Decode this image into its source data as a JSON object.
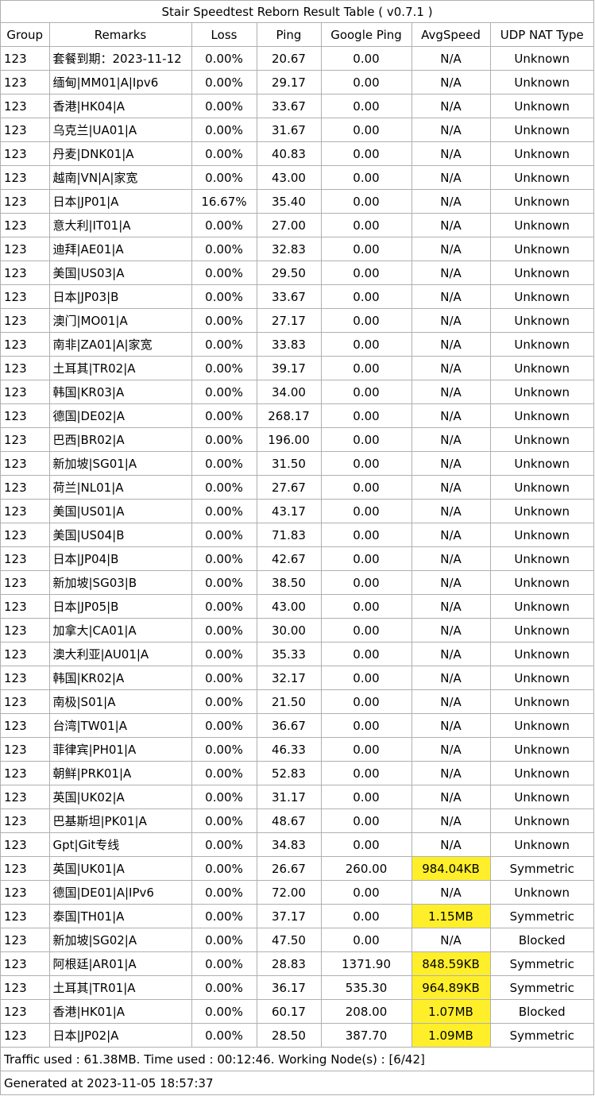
{
  "title": "Stair Speedtest Reborn Result Table ( v0.7.1 )",
  "columns": [
    "Group",
    "Remarks",
    "Loss",
    "Ping",
    "Google Ping",
    "AvgSpeed",
    "UDP NAT Type"
  ],
  "highlight_color": "#ffef2a",
  "rows": [
    [
      "123",
      "套餐到期：2023-11-12",
      "0.00%",
      "20.67",
      "0.00",
      "N/A",
      "Unknown"
    ],
    [
      "123",
      "缅甸|MM01|A|Ipv6",
      "0.00%",
      "29.17",
      "0.00",
      "N/A",
      "Unknown"
    ],
    [
      "123",
      "香港|HK04|A",
      "0.00%",
      "33.67",
      "0.00",
      "N/A",
      "Unknown"
    ],
    [
      "123",
      "乌克兰|UA01|A",
      "0.00%",
      "31.67",
      "0.00",
      "N/A",
      "Unknown"
    ],
    [
      "123",
      "丹麦|DNK01|A",
      "0.00%",
      "40.83",
      "0.00",
      "N/A",
      "Unknown"
    ],
    [
      "123",
      "越南|VN|A|家宽",
      "0.00%",
      "43.00",
      "0.00",
      "N/A",
      "Unknown"
    ],
    [
      "123",
      "日本|JP01|A",
      "16.67%",
      "35.40",
      "0.00",
      "N/A",
      "Unknown"
    ],
    [
      "123",
      "意大利|IT01|A",
      "0.00%",
      "27.00",
      "0.00",
      "N/A",
      "Unknown"
    ],
    [
      "123",
      "迪拜|AE01|A",
      "0.00%",
      "32.83",
      "0.00",
      "N/A",
      "Unknown"
    ],
    [
      "123",
      "美国|US03|A",
      "0.00%",
      "29.50",
      "0.00",
      "N/A",
      "Unknown"
    ],
    [
      "123",
      "日本|JP03|B",
      "0.00%",
      "33.67",
      "0.00",
      "N/A",
      "Unknown"
    ],
    [
      "123",
      "澳门|MO01|A",
      "0.00%",
      "27.17",
      "0.00",
      "N/A",
      "Unknown"
    ],
    [
      "123",
      "南非|ZA01|A|家宽",
      "0.00%",
      "33.83",
      "0.00",
      "N/A",
      "Unknown"
    ],
    [
      "123",
      "土耳其|TR02|A",
      "0.00%",
      "39.17",
      "0.00",
      "N/A",
      "Unknown"
    ],
    [
      "123",
      "韩国|KR03|A",
      "0.00%",
      "34.00",
      "0.00",
      "N/A",
      "Unknown"
    ],
    [
      "123",
      "德国|DE02|A",
      "0.00%",
      "268.17",
      "0.00",
      "N/A",
      "Unknown"
    ],
    [
      "123",
      "巴西|BR02|A",
      "0.00%",
      "196.00",
      "0.00",
      "N/A",
      "Unknown"
    ],
    [
      "123",
      "新加坡|SG01|A",
      "0.00%",
      "31.50",
      "0.00",
      "N/A",
      "Unknown"
    ],
    [
      "123",
      "荷兰|NL01|A",
      "0.00%",
      "27.67",
      "0.00",
      "N/A",
      "Unknown"
    ],
    [
      "123",
      "美国|US01|A",
      "0.00%",
      "43.17",
      "0.00",
      "N/A",
      "Unknown"
    ],
    [
      "123",
      "美国|US04|B",
      "0.00%",
      "71.83",
      "0.00",
      "N/A",
      "Unknown"
    ],
    [
      "123",
      "日本|JP04|B",
      "0.00%",
      "42.67",
      "0.00",
      "N/A",
      "Unknown"
    ],
    [
      "123",
      "新加坡|SG03|B",
      "0.00%",
      "38.50",
      "0.00",
      "N/A",
      "Unknown"
    ],
    [
      "123",
      "日本|JP05|B",
      "0.00%",
      "43.00",
      "0.00",
      "N/A",
      "Unknown"
    ],
    [
      "123",
      "加拿大|CA01|A",
      "0.00%",
      "30.00",
      "0.00",
      "N/A",
      "Unknown"
    ],
    [
      "123",
      "澳大利亚|AU01|A",
      "0.00%",
      "35.33",
      "0.00",
      "N/A",
      "Unknown"
    ],
    [
      "123",
      "韩国|KR02|A",
      "0.00%",
      "32.17",
      "0.00",
      "N/A",
      "Unknown"
    ],
    [
      "123",
      "南极|S01|A",
      "0.00%",
      "21.50",
      "0.00",
      "N/A",
      "Unknown"
    ],
    [
      "123",
      "台湾|TW01|A",
      "0.00%",
      "36.67",
      "0.00",
      "N/A",
      "Unknown"
    ],
    [
      "123",
      "菲律宾|PH01|A",
      "0.00%",
      "46.33",
      "0.00",
      "N/A",
      "Unknown"
    ],
    [
      "123",
      "朝鲜|PRK01|A",
      "0.00%",
      "52.83",
      "0.00",
      "N/A",
      "Unknown"
    ],
    [
      "123",
      "英国|UK02|A",
      "0.00%",
      "31.17",
      "0.00",
      "N/A",
      "Unknown"
    ],
    [
      "123",
      "巴基斯坦|PK01|A",
      "0.00%",
      "48.67",
      "0.00",
      "N/A",
      "Unknown"
    ],
    [
      "123",
      "Gpt|Git专线",
      "0.00%",
      "34.83",
      "0.00",
      "N/A",
      "Unknown"
    ],
    [
      "123",
      "英国|UK01|A",
      "0.00%",
      "26.67",
      "260.00",
      "984.04KB",
      "Symmetric"
    ],
    [
      "123",
      "德国|DE01|A|IPv6",
      "0.00%",
      "72.00",
      "0.00",
      "N/A",
      "Unknown"
    ],
    [
      "123",
      "泰国|TH01|A",
      "0.00%",
      "37.17",
      "0.00",
      "1.15MB",
      "Symmetric"
    ],
    [
      "123",
      "新加坡|SG02|A",
      "0.00%",
      "47.50",
      "0.00",
      "N/A",
      "Blocked"
    ],
    [
      "123",
      "阿根廷|AR01|A",
      "0.00%",
      "28.83",
      "1371.90",
      "848.59KB",
      "Symmetric"
    ],
    [
      "123",
      "土耳其|TR01|A",
      "0.00%",
      "36.17",
      "535.30",
      "964.89KB",
      "Symmetric"
    ],
    [
      "123",
      "香港|HK01|A",
      "0.00%",
      "60.17",
      "208.00",
      "1.07MB",
      "Blocked"
    ],
    [
      "123",
      "日本|JP02|A",
      "0.00%",
      "28.50",
      "387.70",
      "1.09MB",
      "Symmetric"
    ]
  ],
  "footer": {
    "traffic": "Traffic used : 61.38MB. Time used : 00:12:46. Working Node(s) : [6/42]",
    "generated": "Generated at 2023-11-05 18:57:37"
  }
}
